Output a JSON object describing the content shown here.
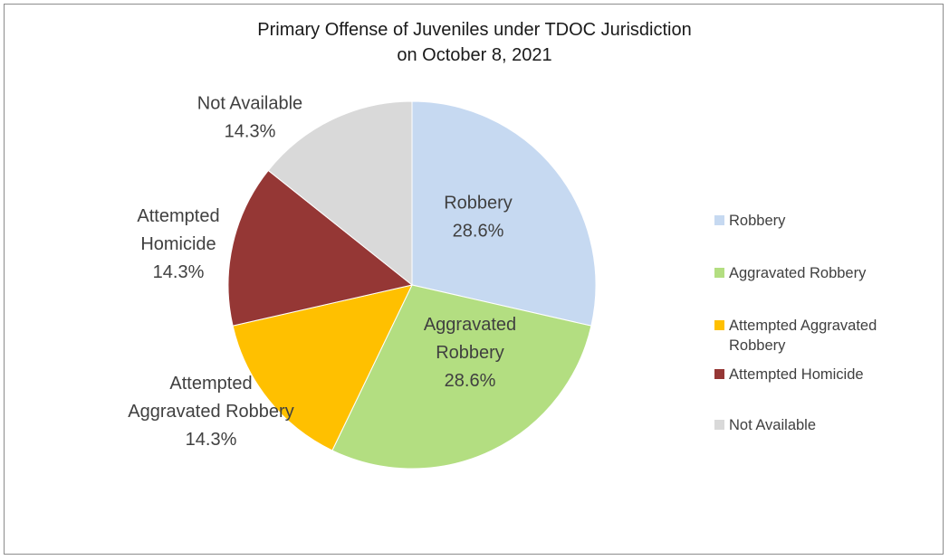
{
  "chart_data": {
    "type": "pie",
    "title_lines": [
      "Primary Offense of Juveniles under TDOC Jurisdiction",
      "on October 8, 2021"
    ],
    "slices": [
      {
        "label": "Robbery",
        "value": 28.6,
        "value_label": "28.6%",
        "color": "#c6d9f1"
      },
      {
        "label": "Aggravated Robbery",
        "value": 28.6,
        "value_label": "28.6%",
        "color": "#b3de81"
      },
      {
        "label": "Attempted Aggravated Robbery",
        "value": 14.3,
        "value_label": "14.3%",
        "color": "#ffc000"
      },
      {
        "label": "Attempted Homicide",
        "value": 14.3,
        "value_label": "14.3%",
        "color": "#953735"
      },
      {
        "label": "Not Available",
        "value": 14.3,
        "value_label": "14.3%",
        "color": "#d9d9d9"
      }
    ],
    "legend_position": "right"
  }
}
